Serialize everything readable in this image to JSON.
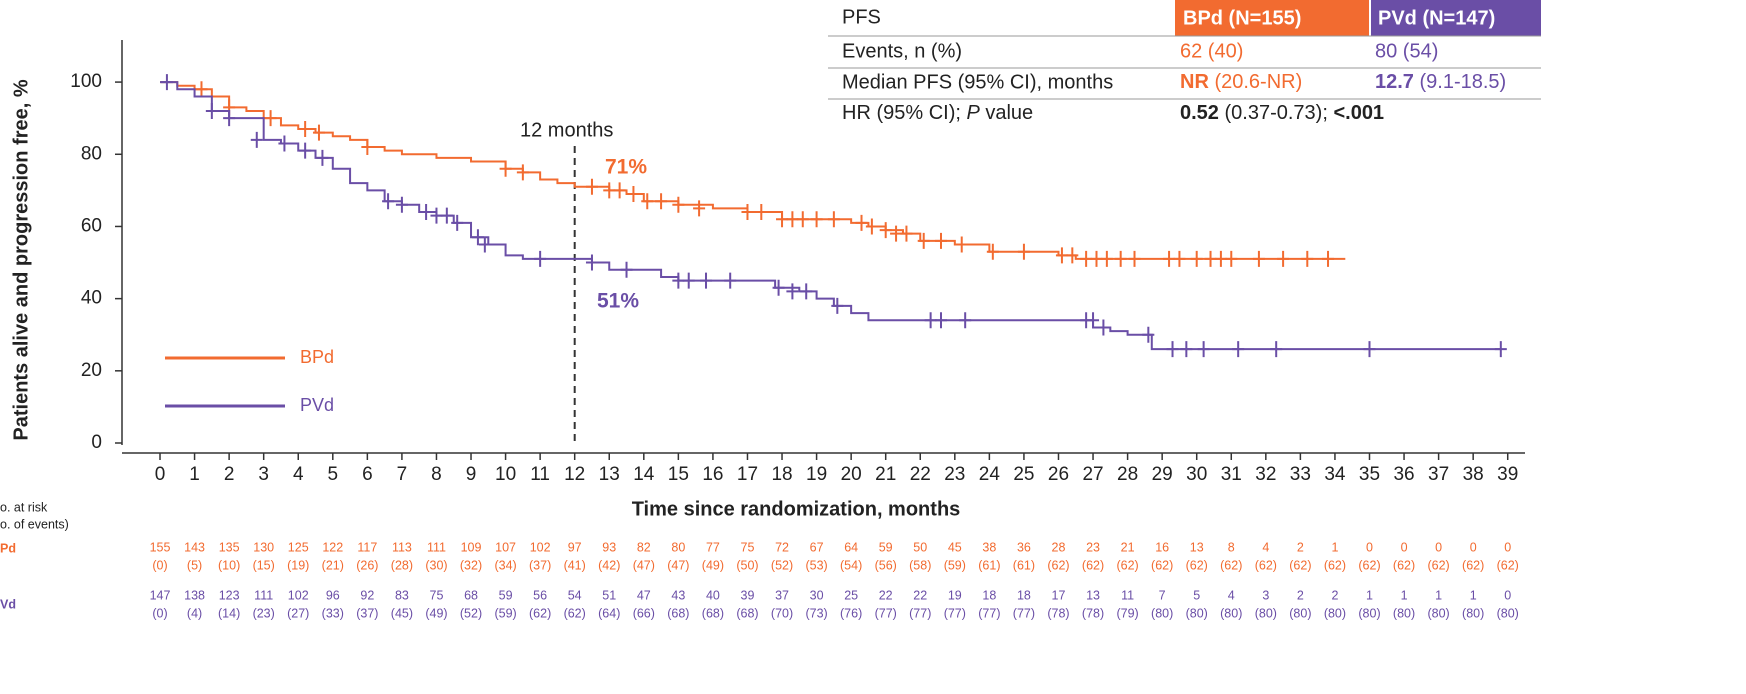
{
  "chart_data": {
    "type": "km",
    "y_label": "Patients alive and progression free, %",
    "x_label": "Time since randomization, months",
    "xlim": [
      -1.1,
      39.5
    ],
    "ylim": [
      0,
      110
    ],
    "xticks": [
      0,
      1,
      2,
      3,
      4,
      5,
      6,
      7,
      8,
      9,
      10,
      11,
      12,
      13,
      14,
      15,
      16,
      17,
      18,
      19,
      20,
      21,
      22,
      23,
      24,
      25,
      26,
      27,
      28,
      29,
      30,
      31,
      32,
      33,
      34,
      35,
      36,
      37,
      38,
      39
    ],
    "yticks": [
      0,
      20,
      40,
      60,
      80,
      100
    ],
    "reference_x": 12,
    "annotations": [
      "12 months",
      "71%",
      "51%"
    ],
    "series": [
      {
        "name": "BPd",
        "color": "#f26b30",
        "x": [
          0,
          0.5,
          1,
          1.5,
          2,
          2.5,
          3,
          3.5,
          4,
          4.5,
          5,
          5.5,
          6,
          6.5,
          7,
          8,
          9,
          10,
          10.5,
          11,
          11.5,
          12,
          13,
          13.5,
          14,
          15,
          16,
          17,
          18,
          20,
          20.5,
          21,
          21.5,
          22,
          23,
          24,
          26,
          26.5,
          34.3
        ],
        "values": [
          100,
          99,
          98,
          96,
          93,
          92,
          90,
          88,
          87,
          86,
          85,
          84,
          82,
          81,
          80,
          79,
          78,
          76,
          75,
          73,
          72,
          71,
          70,
          69,
          67,
          66,
          65,
          64,
          62,
          61,
          60,
          59,
          58,
          56,
          55,
          53,
          52,
          51,
          51
        ],
        "censor_x": [
          1.2,
          2,
          3.2,
          4.2,
          4.6,
          6,
          10,
          10.5,
          12.5,
          13,
          13.3,
          13.7,
          14.1,
          14.5,
          15,
          15.6,
          17,
          17.4,
          18,
          18.3,
          18.6,
          19,
          19.5,
          20.3,
          20.6,
          21,
          21.3,
          21.6,
          22.1,
          22.6,
          23.2,
          24.1,
          25,
          26.1,
          26.4,
          26.8,
          27.1,
          27.4,
          27.8,
          28.2,
          29.2,
          29.5,
          30,
          30.4,
          30.7,
          31,
          31.8,
          32.5,
          33.2,
          33.8
        ],
        "censor_values": [
          98,
          93,
          90,
          87,
          86,
          82,
          76,
          75,
          71,
          70,
          70,
          69,
          67,
          67,
          66,
          65,
          64,
          64,
          62,
          62,
          62,
          62,
          62,
          61,
          60,
          59,
          58,
          58,
          56,
          56,
          55,
          53,
          53,
          52,
          52,
          51,
          51,
          51,
          51,
          51,
          51,
          51,
          51,
          51,
          51,
          51,
          51,
          51,
          51,
          51
        ]
      },
      {
        "name": "PVd",
        "color": "#6a4ea6",
        "x": [
          0,
          0.5,
          1,
          1.5,
          2,
          3,
          3.5,
          4,
          4.5,
          5,
          5.5,
          6,
          6.5,
          7,
          7.5,
          8,
          8.5,
          9,
          9.5,
          10,
          10.5,
          12.5,
          13,
          14.5,
          15,
          17.8,
          18.5,
          19,
          19.5,
          20,
          20.5,
          27,
          27.5,
          28,
          28.7,
          38.8
        ],
        "values": [
          100,
          98,
          96,
          92,
          90,
          84,
          83,
          81,
          79,
          76,
          72,
          70,
          67,
          66,
          64,
          63,
          61,
          57,
          55,
          52,
          51,
          50,
          48,
          46,
          45,
          43,
          42,
          40,
          38,
          36,
          34,
          32,
          31,
          30,
          26,
          26
        ],
        "censor_x": [
          0.2,
          1.5,
          2,
          2.8,
          3.6,
          4.2,
          4.7,
          6.6,
          7,
          7.7,
          8,
          8.3,
          8.6,
          9.2,
          9.4,
          11,
          12.5,
          13.5,
          15,
          15.3,
          15.8,
          16.5,
          17.9,
          18.3,
          18.7,
          19.6,
          22.3,
          22.6,
          23.3,
          26.8,
          27,
          27.3,
          28.6,
          29.3,
          29.7,
          30.2,
          31.2,
          32.3,
          35,
          38.8
        ],
        "censor_values": [
          100,
          92,
          90,
          84,
          83,
          81,
          79,
          67,
          66,
          64,
          63,
          63,
          61,
          57,
          55,
          51,
          50,
          48,
          45,
          45,
          45,
          45,
          43,
          42,
          42,
          38,
          34,
          34,
          34,
          34,
          34,
          32,
          30,
          26,
          26,
          26,
          26,
          26,
          26,
          26
        ]
      }
    ]
  },
  "table": {
    "header": [
      "PFS",
      "BPd (N=155)",
      "PVd (N=147)"
    ],
    "events": [
      "Events, n (%)",
      "62 (40)",
      "80 (54)"
    ],
    "median": [
      "Median PFS (95% CI), months",
      "NR",
      " (20.6-NR)",
      "12.7",
      " (9.1-18.5)"
    ],
    "hr": [
      "HR (95% CI); ",
      "P",
      " value",
      "0.52",
      " (0.37-0.73); ",
      "<.001"
    ]
  },
  "at_risk": {
    "heading": [
      "o. at risk",
      "o. of events)"
    ],
    "rows": [
      {
        "label": "Pd",
        "counts": [
          155,
          143,
          135,
          130,
          125,
          122,
          117,
          113,
          111,
          109,
          107,
          102,
          97,
          93,
          82,
          80,
          77,
          75,
          72,
          67,
          64,
          59,
          50,
          45,
          38,
          36,
          28,
          23,
          21,
          16,
          13,
          8,
          4,
          2,
          1,
          0,
          0,
          0,
          0,
          0
        ],
        "events": [
          "(0)",
          "(5)",
          "(10)",
          "(15)",
          "(19)",
          "(21)",
          "(26)",
          "(28)",
          "(30)",
          "(32)",
          "(34)",
          "(37)",
          "(41)",
          "(42)",
          "(47)",
          "(47)",
          "(49)",
          "(50)",
          "(52)",
          "(53)",
          "(54)",
          "(56)",
          "(58)",
          "(59)",
          "(61)",
          "(61)",
          "(62)",
          "(62)",
          "(62)",
          "(62)",
          "(62)",
          "(62)",
          "(62)",
          "(62)",
          "(62)",
          "(62)",
          "(62)",
          "(62)",
          "(62)",
          "(62)"
        ]
      },
      {
        "label": "Vd",
        "counts": [
          147,
          138,
          123,
          111,
          102,
          96,
          92,
          83,
          75,
          68,
          59,
          56,
          54,
          51,
          47,
          43,
          40,
          39,
          37,
          30,
          25,
          22,
          22,
          19,
          18,
          18,
          17,
          13,
          11,
          7,
          5,
          4,
          3,
          2,
          2,
          1,
          1,
          1,
          1,
          0
        ],
        "events": [
          "(0)",
          "(4)",
          "(14)",
          "(23)",
          "(27)",
          "(33)",
          "(37)",
          "(45)",
          "(49)",
          "(52)",
          "(59)",
          "(62)",
          "(62)",
          "(64)",
          "(66)",
          "(68)",
          "(68)",
          "(68)",
          "(70)",
          "(73)",
          "(76)",
          "(77)",
          "(77)",
          "(77)",
          "(77)",
          "(77)",
          "(78)",
          "(78)",
          "(79)",
          "(80)",
          "(80)",
          "(80)",
          "(80)",
          "(80)",
          "(80)",
          "(80)",
          "(80)",
          "(80)",
          "(80)",
          "(80)"
        ]
      }
    ]
  }
}
